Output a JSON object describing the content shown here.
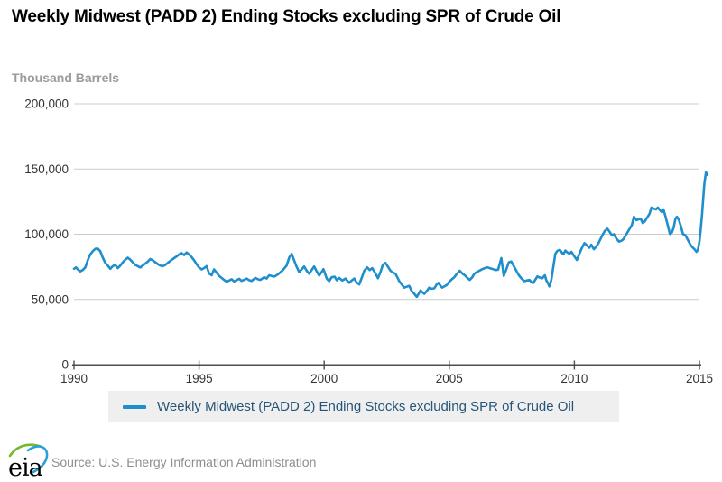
{
  "header": {
    "title": "Weekly Midwest (PADD 2) Ending Stocks excluding SPR of Crude Oil",
    "units_label": "Thousand Barrels"
  },
  "legend": {
    "label": "Weekly Midwest (PADD 2) Ending Stocks excluding SPR of Crude Oil"
  },
  "footer": {
    "logo_text": "eia",
    "source": "Source: U.S. Energy Information Administration"
  },
  "colors": {
    "line": "#1e8fcc",
    "grid": "#cccccc",
    "axis": "#4d4d4d",
    "tick_label": "#333333",
    "legend_bg": "#efeff0",
    "legend_text": "#255577",
    "source_text": "#8e8e8e",
    "units_text": "#9b9b9b",
    "logo_green": "#76b82a",
    "logo_blue": "#2b9fd8"
  },
  "chart_data": {
    "type": "line",
    "title": "Weekly Midwest (PADD 2) Ending Stocks excluding SPR of Crude Oil",
    "xlabel": "",
    "ylabel": "Thousand Barrels",
    "x_range": [
      1990,
      2015.6
    ],
    "y_range": [
      0,
      200000
    ],
    "grid": true,
    "legend_position": "bottom",
    "x_ticks": [
      1990,
      1995,
      2000,
      2005,
      2010,
      2015
    ],
    "y_ticks": [
      0,
      50000,
      100000,
      150000,
      200000
    ],
    "y_tick_labels": [
      "0",
      "50,000",
      "100,000",
      "150,000",
      "200,000"
    ],
    "series": [
      {
        "name": "Weekly Midwest (PADD 2) Ending Stocks excluding SPR of Crude Oil",
        "color": "#1e8fcc",
        "points": [
          [
            1990.0,
            73500
          ],
          [
            1990.08,
            74500
          ],
          [
            1990.15,
            73000
          ],
          [
            1990.25,
            71500
          ],
          [
            1990.35,
            72500
          ],
          [
            1990.45,
            74500
          ],
          [
            1990.55,
            80000
          ],
          [
            1990.65,
            84500
          ],
          [
            1990.75,
            87000
          ],
          [
            1990.85,
            88800
          ],
          [
            1990.95,
            89000
          ],
          [
            1991.05,
            87000
          ],
          [
            1991.15,
            82000
          ],
          [
            1991.25,
            78000
          ],
          [
            1991.35,
            76000
          ],
          [
            1991.45,
            73500
          ],
          [
            1991.55,
            75500
          ],
          [
            1991.65,
            76500
          ],
          [
            1991.75,
            74000
          ],
          [
            1991.85,
            76000
          ],
          [
            1991.95,
            78500
          ],
          [
            1992.05,
            80500
          ],
          [
            1992.15,
            82000
          ],
          [
            1992.25,
            80500
          ],
          [
            1992.35,
            78500
          ],
          [
            1992.45,
            76500
          ],
          [
            1992.55,
            75500
          ],
          [
            1992.65,
            74500
          ],
          [
            1992.75,
            76000
          ],
          [
            1992.85,
            77500
          ],
          [
            1992.95,
            79000
          ],
          [
            1993.05,
            81000
          ],
          [
            1993.15,
            80000
          ],
          [
            1993.25,
            78500
          ],
          [
            1993.35,
            77000
          ],
          [
            1993.45,
            76000
          ],
          [
            1993.55,
            75500
          ],
          [
            1993.65,
            76500
          ],
          [
            1993.75,
            78000
          ],
          [
            1993.85,
            79500
          ],
          [
            1993.95,
            81000
          ],
          [
            1994.1,
            83000
          ],
          [
            1994.2,
            84500
          ],
          [
            1994.3,
            85500
          ],
          [
            1994.4,
            84000
          ],
          [
            1994.5,
            86000
          ],
          [
            1994.6,
            84500
          ],
          [
            1994.7,
            82500
          ],
          [
            1994.8,
            80000
          ],
          [
            1994.9,
            77000
          ],
          [
            1995.0,
            74500
          ],
          [
            1995.1,
            73000
          ],
          [
            1995.2,
            74000
          ],
          [
            1995.3,
            75500
          ],
          [
            1995.4,
            70000
          ],
          [
            1995.5,
            68500
          ],
          [
            1995.6,
            73000
          ],
          [
            1995.7,
            70500
          ],
          [
            1995.8,
            68000
          ],
          [
            1995.9,
            66500
          ],
          [
            1996.0,
            65000
          ],
          [
            1996.1,
            63500
          ],
          [
            1996.2,
            64500
          ],
          [
            1996.3,
            65500
          ],
          [
            1996.4,
            63800
          ],
          [
            1996.5,
            64800
          ],
          [
            1996.6,
            65800
          ],
          [
            1996.7,
            64200
          ],
          [
            1996.8,
            65000
          ],
          [
            1996.9,
            66000
          ],
          [
            1997.0,
            64800
          ],
          [
            1997.1,
            64200
          ],
          [
            1997.25,
            66500
          ],
          [
            1997.35,
            65500
          ],
          [
            1997.45,
            65000
          ],
          [
            1997.6,
            67000
          ],
          [
            1997.7,
            66000
          ],
          [
            1997.8,
            68500
          ],
          [
            1997.9,
            68000
          ],
          [
            1998.0,
            67500
          ],
          [
            1998.1,
            68500
          ],
          [
            1998.2,
            70000
          ],
          [
            1998.35,
            72500
          ],
          [
            1998.5,
            76000
          ],
          [
            1998.6,
            82000
          ],
          [
            1998.7,
            85000
          ],
          [
            1998.8,
            80000
          ],
          [
            1998.9,
            75000
          ],
          [
            1999.0,
            71000
          ],
          [
            1999.1,
            73000
          ],
          [
            1999.2,
            75300
          ],
          [
            1999.3,
            72000
          ],
          [
            1999.4,
            69700
          ],
          [
            1999.5,
            72500
          ],
          [
            1999.6,
            75300
          ],
          [
            1999.7,
            71500
          ],
          [
            1999.8,
            68300
          ],
          [
            1999.9,
            71000
          ],
          [
            1999.97,
            73200
          ],
          [
            2000.1,
            66000
          ],
          [
            2000.2,
            64000
          ],
          [
            2000.3,
            67000
          ],
          [
            2000.42,
            67400
          ],
          [
            2000.5,
            64800
          ],
          [
            2000.6,
            66500
          ],
          [
            2000.72,
            64500
          ],
          [
            2000.85,
            66000
          ],
          [
            2001.0,
            62700
          ],
          [
            2001.1,
            64500
          ],
          [
            2001.2,
            66000
          ],
          [
            2001.3,
            63000
          ],
          [
            2001.4,
            61500
          ],
          [
            2001.5,
            66500
          ],
          [
            2001.6,
            72000
          ],
          [
            2001.72,
            74600
          ],
          [
            2001.82,
            72500
          ],
          [
            2001.92,
            74000
          ],
          [
            2002.05,
            70000
          ],
          [
            2002.15,
            66200
          ],
          [
            2002.25,
            71000
          ],
          [
            2002.35,
            76700
          ],
          [
            2002.45,
            78000
          ],
          [
            2002.55,
            75000
          ],
          [
            2002.65,
            72000
          ],
          [
            2002.75,
            70500
          ],
          [
            2002.85,
            69700
          ],
          [
            2003.0,
            64000
          ],
          [
            2003.1,
            61500
          ],
          [
            2003.2,
            59000
          ],
          [
            2003.3,
            59700
          ],
          [
            2003.4,
            60400
          ],
          [
            2003.5,
            56500
          ],
          [
            2003.6,
            54300
          ],
          [
            2003.7,
            52000
          ],
          [
            2003.78,
            54500
          ],
          [
            2003.85,
            56800
          ],
          [
            2003.93,
            55500
          ],
          [
            2004.0,
            54300
          ],
          [
            2004.1,
            56500
          ],
          [
            2004.2,
            59000
          ],
          [
            2004.3,
            58200
          ],
          [
            2004.4,
            58500
          ],
          [
            2004.5,
            61500
          ],
          [
            2004.57,
            62700
          ],
          [
            2004.65,
            60500
          ],
          [
            2004.72,
            59000
          ],
          [
            2004.8,
            60000
          ],
          [
            2004.9,
            61000
          ],
          [
            2005.0,
            63500
          ],
          [
            2005.1,
            65500
          ],
          [
            2005.2,
            67000
          ],
          [
            2005.3,
            69500
          ],
          [
            2005.42,
            72000
          ],
          [
            2005.52,
            70000
          ],
          [
            2005.62,
            68500
          ],
          [
            2005.72,
            66500
          ],
          [
            2005.82,
            65000
          ],
          [
            2005.92,
            67000
          ],
          [
            2006.0,
            69700
          ],
          [
            2006.1,
            71000
          ],
          [
            2006.2,
            72000
          ],
          [
            2006.32,
            73200
          ],
          [
            2006.42,
            74000
          ],
          [
            2006.52,
            74600
          ],
          [
            2006.65,
            73800
          ],
          [
            2006.75,
            73200
          ],
          [
            2006.85,
            72500
          ],
          [
            2006.95,
            72800
          ],
          [
            2007.08,
            81700
          ],
          [
            2007.18,
            68000
          ],
          [
            2007.28,
            73000
          ],
          [
            2007.38,
            78500
          ],
          [
            2007.48,
            79000
          ],
          [
            2007.58,
            75500
          ],
          [
            2007.68,
            72000
          ],
          [
            2007.78,
            68500
          ],
          [
            2007.88,
            66200
          ],
          [
            2008.0,
            64000
          ],
          [
            2008.1,
            64500
          ],
          [
            2008.2,
            65000
          ],
          [
            2008.28,
            63500
          ],
          [
            2008.36,
            62700
          ],
          [
            2008.45,
            65500
          ],
          [
            2008.52,
            67600
          ],
          [
            2008.62,
            66800
          ],
          [
            2008.72,
            66200
          ],
          [
            2008.82,
            68500
          ],
          [
            2008.88,
            64500
          ],
          [
            2008.94,
            62700
          ],
          [
            2009.0,
            60000
          ],
          [
            2009.08,
            65000
          ],
          [
            2009.16,
            75000
          ],
          [
            2009.24,
            85000
          ],
          [
            2009.32,
            87300
          ],
          [
            2009.42,
            88000
          ],
          [
            2009.5,
            86000
          ],
          [
            2009.56,
            84500
          ],
          [
            2009.64,
            87500
          ],
          [
            2009.72,
            86000
          ],
          [
            2009.8,
            85000
          ],
          [
            2009.88,
            86500
          ],
          [
            2009.95,
            84500
          ],
          [
            2010.02,
            82400
          ],
          [
            2010.1,
            80300
          ],
          [
            2010.2,
            85000
          ],
          [
            2010.3,
            89400
          ],
          [
            2010.4,
            93200
          ],
          [
            2010.5,
            91500
          ],
          [
            2010.6,
            89600
          ],
          [
            2010.68,
            92000
          ],
          [
            2010.78,
            88500
          ],
          [
            2010.88,
            90500
          ],
          [
            2010.96,
            93000
          ],
          [
            2011.05,
            96500
          ],
          [
            2011.12,
            99200
          ],
          [
            2011.22,
            102600
          ],
          [
            2011.32,
            104200
          ],
          [
            2011.42,
            101500
          ],
          [
            2011.5,
            99200
          ],
          [
            2011.58,
            100000
          ],
          [
            2011.68,
            96700
          ],
          [
            2011.78,
            94400
          ],
          [
            2011.88,
            95000
          ],
          [
            2011.95,
            96000
          ],
          [
            2012.05,
            99000
          ],
          [
            2012.12,
            101400
          ],
          [
            2012.22,
            104500
          ],
          [
            2012.3,
            107200
          ],
          [
            2012.38,
            113400
          ],
          [
            2012.48,
            110800
          ],
          [
            2012.58,
            111500
          ],
          [
            2012.65,
            112000
          ],
          [
            2012.73,
            108500
          ],
          [
            2012.82,
            110000
          ],
          [
            2012.9,
            112500
          ],
          [
            2013.0,
            115500
          ],
          [
            2013.08,
            120400
          ],
          [
            2013.18,
            119500
          ],
          [
            2013.26,
            119000
          ],
          [
            2013.34,
            120400
          ],
          [
            2013.44,
            118000
          ],
          [
            2013.5,
            116900
          ],
          [
            2013.56,
            119000
          ],
          [
            2013.65,
            113000
          ],
          [
            2013.74,
            106300
          ],
          [
            2013.82,
            100200
          ],
          [
            2013.9,
            101400
          ],
          [
            2013.97,
            105000
          ],
          [
            2014.04,
            112000
          ],
          [
            2014.1,
            113400
          ],
          [
            2014.18,
            110800
          ],
          [
            2014.26,
            106000
          ],
          [
            2014.34,
            100200
          ],
          [
            2014.44,
            99200
          ],
          [
            2014.54,
            95600
          ],
          [
            2014.64,
            92000
          ],
          [
            2014.72,
            90000
          ],
          [
            2014.8,
            88500
          ],
          [
            2014.88,
            86500
          ],
          [
            2014.94,
            88000
          ],
          [
            2015.0,
            94400
          ],
          [
            2015.05,
            103700
          ],
          [
            2015.1,
            114300
          ],
          [
            2015.15,
            127500
          ],
          [
            2015.2,
            139000
          ],
          [
            2015.26,
            147500
          ],
          [
            2015.32,
            145500
          ]
        ]
      }
    ]
  }
}
